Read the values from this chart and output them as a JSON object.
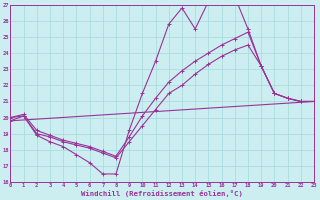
{
  "bg": "#cceef0",
  "grid_color": "#aadddd",
  "lc": "#993399",
  "lw": 0.8,
  "ms": 3.0,
  "xlabel": "Windchill (Refroidissement éolien,°C)",
  "xmin": 0,
  "xmax": 23,
  "ymin": 16,
  "ymax": 27,
  "line1_x": [
    0,
    1,
    2,
    3,
    4,
    5,
    6,
    7,
    8,
    9,
    10,
    11,
    12,
    13,
    14,
    15,
    16,
    17,
    18,
    19,
    20,
    21,
    22,
    23
  ],
  "line1_y": [
    20.0,
    20.1,
    19.0,
    18.8,
    18.5,
    18.3,
    18.1,
    17.8,
    17.5,
    18.5,
    19.5,
    20.5,
    21.5,
    22.0,
    22.7,
    23.3,
    23.8,
    24.2,
    24.5,
    23.2,
    21.5,
    21.2,
    21.0,
    21.0
  ],
  "line2_x": [
    0,
    1,
    2,
    3,
    4,
    5,
    6,
    7,
    8,
    9,
    10,
    11,
    12,
    13,
    14,
    15,
    16,
    17,
    18,
    19,
    20,
    21,
    22,
    23
  ],
  "line2_y": [
    20.0,
    20.2,
    19.2,
    18.9,
    18.6,
    18.4,
    18.2,
    17.9,
    17.6,
    18.8,
    20.1,
    21.2,
    22.2,
    22.9,
    23.5,
    24.0,
    24.5,
    24.9,
    25.3,
    23.2,
    21.5,
    21.2,
    21.0,
    21.0
  ],
  "line3_x": [
    0,
    1,
    2,
    3,
    4,
    5,
    6,
    7,
    8,
    9,
    10,
    11,
    12,
    13,
    14,
    15,
    16,
    17,
    18,
    19,
    20,
    21,
    22,
    23
  ],
  "line3_y": [
    19.8,
    20.1,
    18.9,
    18.5,
    18.2,
    17.7,
    17.2,
    16.5,
    16.5,
    19.2,
    21.5,
    23.5,
    25.8,
    26.8,
    25.5,
    27.2,
    27.2,
    27.5,
    25.5,
    23.2,
    21.5,
    21.2,
    21.0,
    21.0
  ],
  "line4_x": [
    0,
    23
  ],
  "line4_y": [
    19.8,
    21.0
  ]
}
